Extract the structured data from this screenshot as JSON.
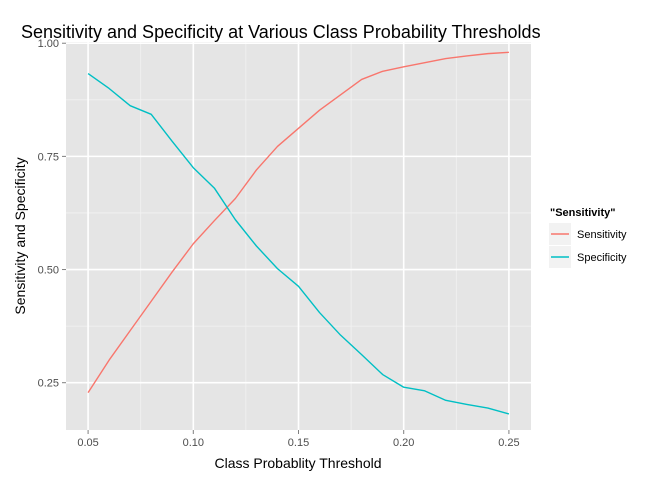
{
  "chart_data": {
    "type": "line",
    "title": "Sensitivity and Specificity at Various Class Probability Thresholds",
    "xlabel": "Class Probablity Threshold",
    "ylabel": "Sensitivity and Specificity",
    "xlim": [
      0.0395,
      0.2605
    ],
    "ylim": [
      0.1455,
      1.0027
    ],
    "x_ticks": [
      0.05,
      0.1,
      0.15,
      0.2,
      0.25
    ],
    "x_tick_labels": [
      "0.05",
      "0.10",
      "0.15",
      "0.20",
      "0.25"
    ],
    "y_ticks": [
      0.25,
      0.5,
      0.75,
      1.0
    ],
    "y_tick_labels": [
      "0.25",
      "0.50",
      "0.75",
      "1.00"
    ],
    "grid": true,
    "legend": {
      "title": "\"Sensitivity\"",
      "placement": "right",
      "entries": [
        "Sensitivity",
        "Specificity"
      ]
    },
    "x": [
      0.05,
      0.06,
      0.07,
      0.08,
      0.09,
      0.1,
      0.11,
      0.12,
      0.13,
      0.14,
      0.15,
      0.16,
      0.17,
      0.18,
      0.19,
      0.2,
      0.21,
      0.22,
      0.23,
      0.24,
      0.25
    ],
    "series": [
      {
        "name": "Sensitivity",
        "color": "#F8766D",
        "values": [
          0.228,
          0.3,
          0.365,
          0.43,
          0.495,
          0.557,
          0.608,
          0.657,
          0.72,
          0.772,
          0.812,
          0.852,
          0.886,
          0.92,
          0.938,
          0.948,
          0.957,
          0.966,
          0.972,
          0.977,
          0.98
        ]
      },
      {
        "name": "Specificity",
        "color": "#00BFC4",
        "values": [
          0.933,
          0.9,
          0.862,
          0.843,
          0.783,
          0.725,
          0.68,
          0.61,
          0.552,
          0.502,
          0.463,
          0.405,
          0.355,
          0.312,
          0.268,
          0.24,
          0.232,
          0.211,
          0.202,
          0.194,
          0.181
        ]
      }
    ],
    "colors": {
      "panel_background": "#E5E5E5",
      "grid_major": "#FFFFFF",
      "grid_minor": "#F2F2F2",
      "tick_label": "#4D4D4D",
      "legend_key_background": "#F2F2F2"
    }
  }
}
